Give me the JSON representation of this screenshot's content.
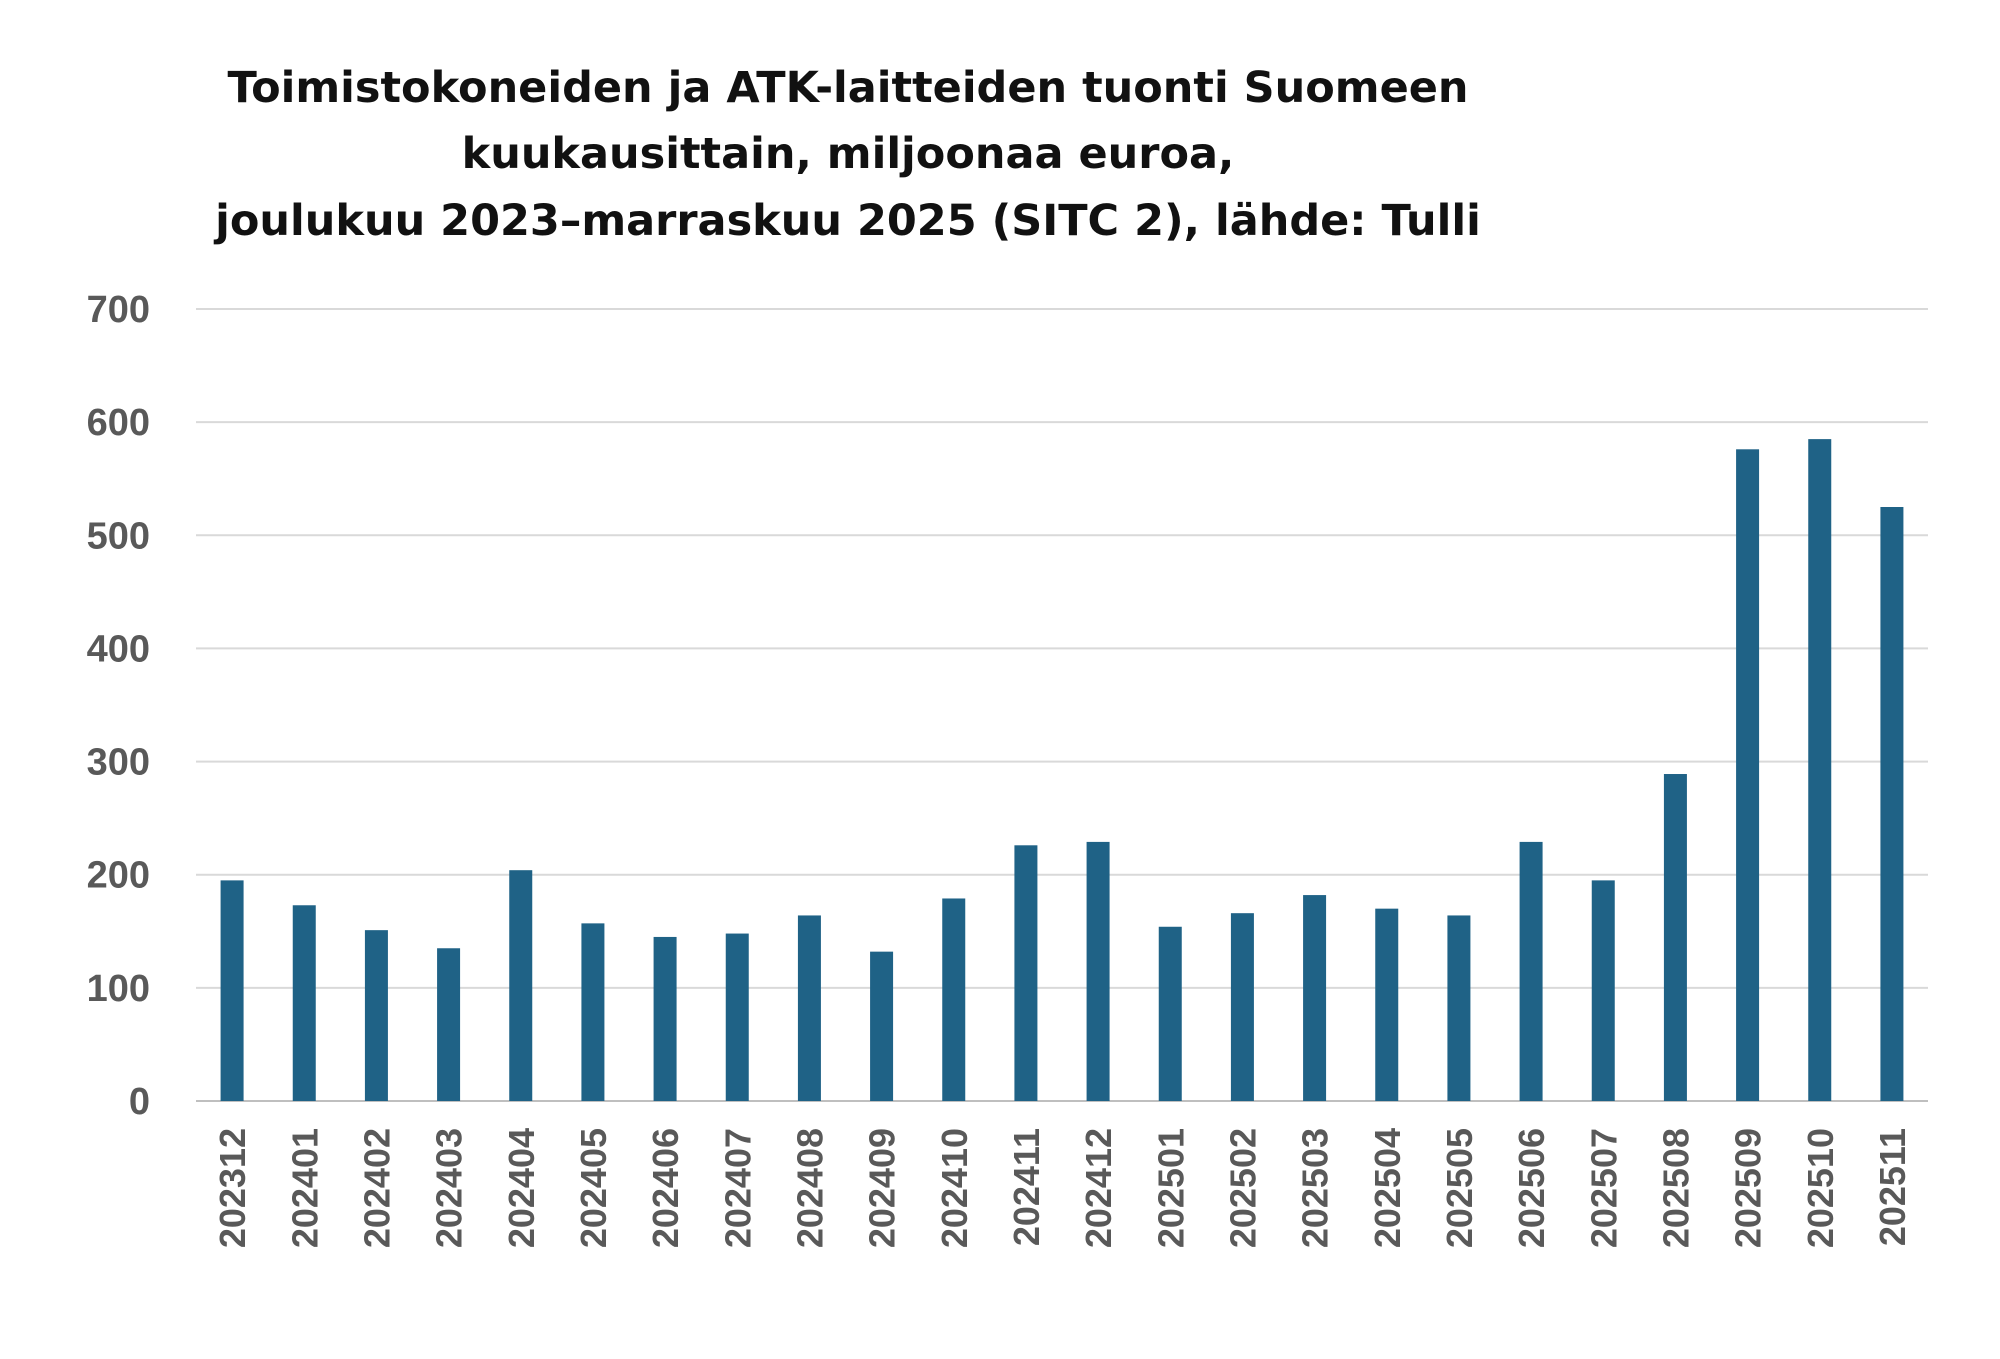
{
  "chart_data": {
    "type": "bar",
    "title": [
      "Toimistokoneiden ja ATK-laitteiden tuonti Suomeen",
      "kuukausittain, miljoonaa euroa,",
      "joulukuu 2023–marraskuu 2025 (SITC 2), lähde: Tulli"
    ],
    "xlabel": "",
    "ylabel": "",
    "categories": [
      "202312",
      "202401",
      "202402",
      "202403",
      "202404",
      "202405",
      "202406",
      "202407",
      "202408",
      "202409",
      "202410",
      "202411",
      "202412",
      "202501",
      "202502",
      "202503",
      "202504",
      "202505",
      "202506",
      "202507",
      "202508",
      "202509",
      "202510",
      "202511"
    ],
    "values": [
      195,
      173,
      151,
      135,
      204,
      157,
      145,
      148,
      164,
      132,
      179,
      226,
      229,
      154,
      166,
      182,
      170,
      164,
      229,
      195,
      289,
      576,
      585,
      525
    ],
    "ylim": [
      0,
      700
    ],
    "yticks": [
      "0",
      "100",
      "200",
      "300",
      "400",
      "500",
      "600",
      "700"
    ],
    "grid": true,
    "legend": "none",
    "colors": {
      "bar": "#1f6286",
      "gridline": "#d9d9d9",
      "tick_label": "#595959",
      "title": "#111111"
    }
  }
}
